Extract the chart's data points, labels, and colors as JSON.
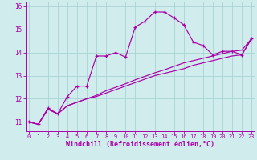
{
  "xlabel": "Windchill (Refroidissement éolien,°C)",
  "background_color": "#d0ecec",
  "grid_color": "#a8d4d4",
  "line_color": "#aa00aa",
  "x_hours": [
    0,
    1,
    2,
    3,
    4,
    5,
    6,
    7,
    8,
    9,
    10,
    11,
    12,
    13,
    14,
    15,
    16,
    17,
    18,
    19,
    20,
    21,
    22,
    23
  ],
  "temp_line": [
    11.0,
    10.9,
    11.6,
    11.35,
    12.1,
    12.55,
    12.55,
    13.85,
    13.85,
    14.0,
    13.8,
    15.1,
    15.35,
    15.75,
    15.75,
    15.5,
    15.2,
    14.45,
    14.3,
    13.9,
    14.05,
    14.05,
    13.9,
    14.6
  ],
  "windchill_line": [
    11.0,
    10.9,
    11.55,
    11.35,
    11.7,
    11.85,
    12.0,
    12.1,
    12.25,
    12.4,
    12.55,
    12.7,
    12.85,
    13.0,
    13.1,
    13.2,
    13.3,
    13.45,
    13.55,
    13.65,
    13.75,
    13.85,
    13.9,
    14.6
  ],
  "apparent_line": [
    11.0,
    10.9,
    11.55,
    11.35,
    11.7,
    11.85,
    12.0,
    12.15,
    12.35,
    12.5,
    12.65,
    12.82,
    12.97,
    13.12,
    13.25,
    13.4,
    13.55,
    13.65,
    13.75,
    13.85,
    13.95,
    14.05,
    14.1,
    14.6
  ],
  "ylim": [
    10.6,
    16.2
  ],
  "yticks": [
    11,
    12,
    13,
    14,
    15,
    16
  ],
  "xlim": [
    -0.3,
    23.3
  ],
  "xtick_fontsize": 5.0,
  "ytick_fontsize": 5.5,
  "xlabel_fontsize": 6.0
}
